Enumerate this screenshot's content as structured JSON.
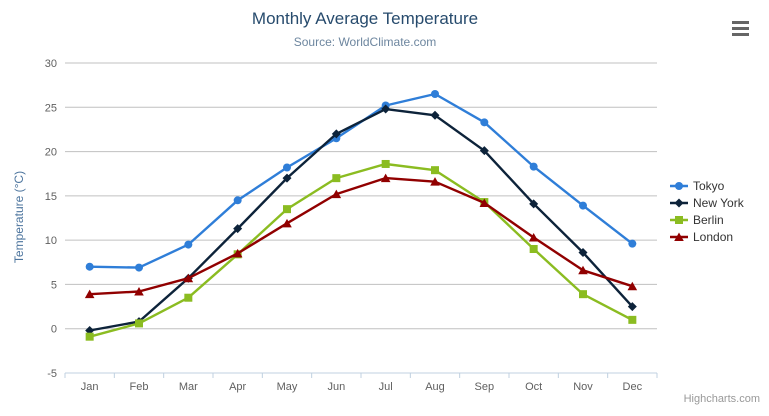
{
  "credits": {
    "label": "Highcharts.com"
  },
  "export_menu": {
    "icon": "hamburger-menu-icon"
  },
  "chart_data": {
    "type": "line",
    "title": "Monthly Average Temperature",
    "subtitle": "Source: WorldClimate.com",
    "xlabel": "",
    "ylabel": "Temperature (°C)",
    "ylim": [
      -5,
      30
    ],
    "y_ticks": [
      30,
      25,
      20,
      15,
      10,
      5,
      0,
      -5
    ],
    "grid": true,
    "legend_position": "right",
    "categories": [
      "Jan",
      "Feb",
      "Mar",
      "Apr",
      "May",
      "Jun",
      "Jul",
      "Aug",
      "Sep",
      "Oct",
      "Nov",
      "Dec"
    ],
    "series": [
      {
        "name": "Tokyo",
        "color": "#2f7ed8",
        "marker": "circle",
        "values": [
          7.0,
          6.9,
          9.5,
          14.5,
          18.2,
          21.5,
          25.2,
          26.5,
          23.3,
          18.3,
          13.9,
          9.6
        ]
      },
      {
        "name": "New York",
        "color": "#0d233a",
        "marker": "diamond",
        "values": [
          -0.2,
          0.8,
          5.7,
          11.3,
          17.0,
          22.0,
          24.8,
          24.1,
          20.1,
          14.1,
          8.6,
          2.5
        ]
      },
      {
        "name": "Berlin",
        "color": "#8bbc21",
        "marker": "square",
        "values": [
          -0.9,
          0.6,
          3.5,
          8.4,
          13.5,
          17.0,
          18.6,
          17.9,
          14.3,
          9.0,
          3.9,
          1.0
        ]
      },
      {
        "name": "London",
        "color": "#910000",
        "marker": "triangle",
        "values": [
          3.9,
          4.2,
          5.7,
          8.5,
          11.9,
          15.2,
          17.0,
          16.6,
          14.2,
          10.3,
          6.6,
          4.8
        ]
      }
    ],
    "style": {
      "title_color": "#274b6d",
      "subtitle_color": "#6d869f",
      "y_axis_title_color": "#4d759e",
      "tick_label_color": "#606060",
      "grid_color": "#c0c0c0",
      "axis_line_color": "#c0d0e0",
      "legend_text_color": "#333333",
      "credit_color": "#999999",
      "menu_icon_color": "#666666"
    }
  }
}
